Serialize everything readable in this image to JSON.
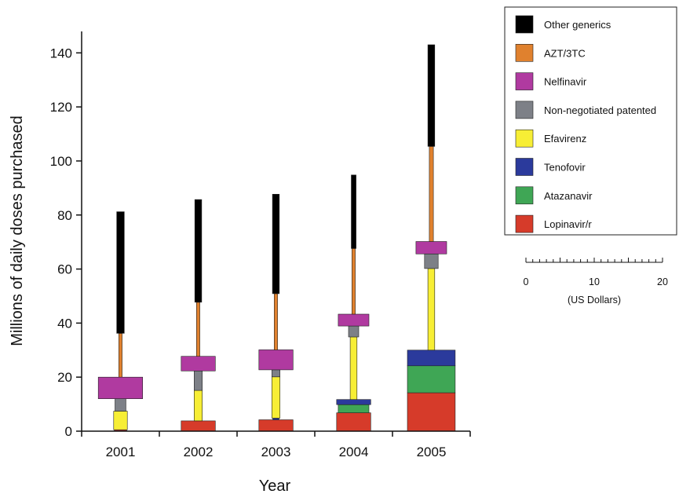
{
  "chart_data": {
    "type": "bar",
    "subtype": "stacked-variable-width",
    "xlabel": "Year",
    "ylabel": "Millions of daily doses purchased",
    "ylim": [
      0,
      143
    ],
    "yticks": [
      0,
      20,
      40,
      60,
      80,
      100,
      120,
      140
    ],
    "categories": [
      "2001",
      "2002",
      "2003",
      "2004",
      "2005"
    ],
    "series": [
      {
        "name": "Lopinavir/r",
        "color": "#d63b2a",
        "values": [
          0.5,
          3.8,
          4.2,
          6.8,
          14.2
        ],
        "price_usd": [
          1.8,
          5.0,
          5.0,
          5.0,
          7.0
        ]
      },
      {
        "name": "Atazanavir",
        "color": "#3fa655",
        "values": [
          0,
          0,
          0,
          3.0,
          10.0
        ],
        "price_usd": [
          0,
          0,
          0,
          4.5,
          7.0
        ]
      },
      {
        "name": "Tenofovir",
        "color": "#2b3a9c",
        "values": [
          0,
          0,
          0.6,
          1.9,
          5.8
        ],
        "price_usd": [
          0,
          0,
          0.9,
          5.0,
          7.0
        ]
      },
      {
        "name": "Efavirenz",
        "color": "#f7ee35",
        "values": [
          6.9,
          11.3,
          15.3,
          23.2,
          30.2
        ],
        "price_usd": [
          2.0,
          1.2,
          1.2,
          1.0,
          1.0
        ]
      },
      {
        "name": "Non-negotiated patented",
        "color": "#7d8087",
        "values": [
          4.6,
          7.2,
          2.6,
          4.0,
          5.4
        ],
        "price_usd": [
          1.6,
          1.2,
          1.2,
          1.5,
          2.0
        ]
      },
      {
        "name": "Nelfinavir",
        "color": "#b03aa0",
        "values": [
          8.0,
          5.4,
          7.4,
          4.4,
          4.6
        ],
        "price_usd": [
          6.5,
          5.0,
          5.0,
          4.5,
          4.5
        ]
      },
      {
        "name": "AZT/3TC",
        "color": "#e0812e",
        "values": [
          16.2,
          20.0,
          20.8,
          24.3,
          35.2
        ],
        "price_usd": [
          0.5,
          0.5,
          0.5,
          0.5,
          0.6
        ]
      },
      {
        "name": "Other generics",
        "color": "#000000",
        "values": [
          45.0,
          38.0,
          36.8,
          27.2,
          37.6
        ],
        "price_usd": [
          1.1,
          1.0,
          1.0,
          0.7,
          1.0
        ]
      }
    ],
    "legend": {
      "position": "top-right"
    },
    "width_scale": {
      "label": "(US Dollars)",
      "ticks": [
        "0",
        "10",
        "20"
      ]
    },
    "grid": false
  }
}
